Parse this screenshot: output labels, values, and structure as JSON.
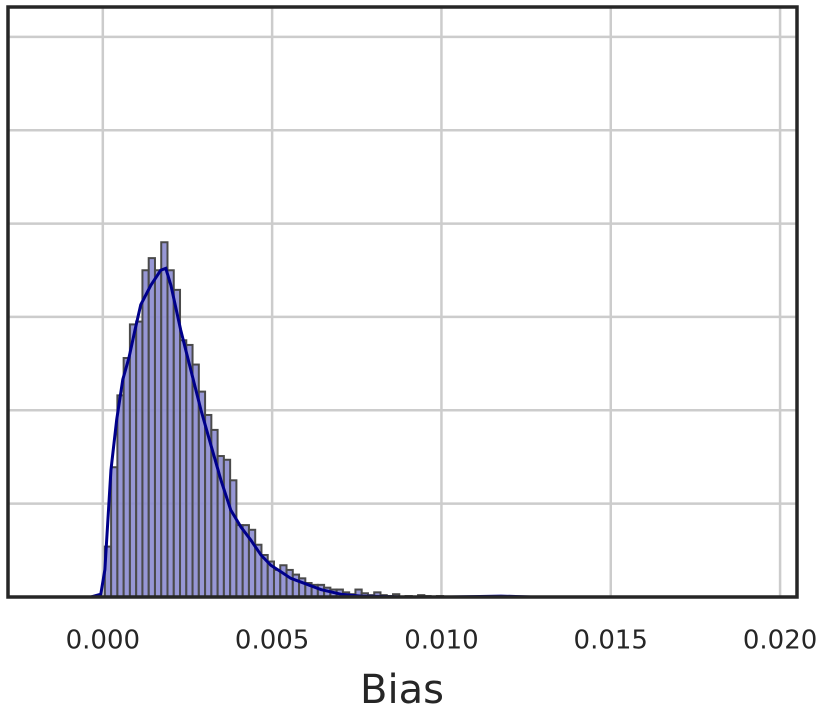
{
  "chart_data": {
    "type": "histogram",
    "x_label": "Bias",
    "bins": [
      6e-05,
      0.000245,
      0.00043,
      0.000615,
      0.0008,
      0.000985,
      0.00117,
      0.001355,
      0.00154,
      0.001725,
      0.00191,
      0.002095,
      0.00228,
      0.002465,
      0.00265,
      0.002835,
      0.00302,
      0.003205,
      0.00339,
      0.003575,
      0.00376,
      0.003945,
      0.00413,
      0.004315,
      0.0045,
      0.004685,
      0.00487,
      0.005055,
      0.00524,
      0.005425,
      0.00561,
      0.005795,
      0.00598,
      0.006165,
      0.00635,
      0.006535,
      0.00672,
      0.006905,
      0.00709,
      0.007275,
      0.00746,
      0.007645,
      0.00783,
      0.008015,
      0.0082,
      0.008385,
      0.00857,
      0.008755,
      0.00894,
      0.009125,
      0.00931,
      0.009495,
      0.00968,
      0.009865,
      0.01005
    ],
    "values": [
      54,
      139,
      216,
      256,
      292,
      295,
      350,
      363,
      350,
      380,
      350,
      329,
      275,
      270,
      249,
      220,
      195,
      179,
      151,
      147,
      125,
      77,
      77,
      72,
      56,
      45,
      38,
      29,
      34,
      29,
      24,
      20,
      15,
      13,
      13,
      10,
      8,
      8,
      5,
      3,
      8,
      4,
      2,
      5,
      2,
      1,
      3,
      0,
      1,
      0,
      2,
      1,
      0,
      1
    ],
    "color": "#8c8cd0",
    "edgecolor": "#4a4a4a",
    "kde": {
      "color": "#00008b",
      "x": [
        -0.00035,
        -6e-05,
        6e-05,
        0.00024,
        0.00041,
        0.00059,
        0.00077,
        0.00095,
        0.00112,
        0.00142,
        0.00171,
        0.00186,
        0.00201,
        0.0023,
        0.0026,
        0.0029,
        0.00319,
        0.00349,
        0.00378,
        0.00408,
        0.00437,
        0.00467,
        0.00496,
        0.00526,
        0.00555,
        0.00585,
        0.00644,
        0.00703,
        0.00762,
        0.0088,
        0.01028,
        0.01176,
        0.01264
      ],
      "values": [
        0,
        3,
        29,
        136,
        190,
        233,
        256,
        286,
        313,
        334,
        350,
        352,
        334,
        286,
        243,
        200,
        163,
        125,
        93,
        75,
        61,
        45,
        34,
        27,
        20,
        16,
        8,
        3,
        1,
        0,
        0,
        1,
        0
      ]
    },
    "xlim": [
      -0.0028,
      0.0205
    ],
    "xticks": [
      {
        "value": 0,
        "label": "0.000"
      },
      {
        "value": 0.005,
        "label": "0.005"
      },
      {
        "value": 0.01,
        "label": "0.010"
      },
      {
        "value": 0.015,
        "label": "0.015"
      },
      {
        "value": 0.02,
        "label": "0.020"
      }
    ],
    "ylim": [
      0,
      632
    ],
    "yticks": [
      0,
      100,
      200,
      300,
      400,
      500,
      600
    ],
    "show_ytick_labels": false,
    "grid": true
  }
}
